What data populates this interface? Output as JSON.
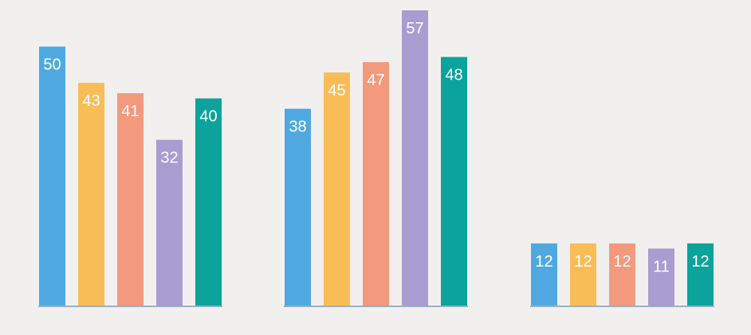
{
  "chart_data": {
    "type": "bar",
    "title": "",
    "xlabel": "",
    "ylabel": "",
    "ylim": [
      0,
      57
    ],
    "grid": false,
    "legend": "none",
    "colors": [
      "#4fa9e0",
      "#f9bd57",
      "#f3997d",
      "#a89cd0",
      "#0ba39b"
    ],
    "groups": [
      {
        "values": [
          50,
          43,
          41,
          32,
          40
        ]
      },
      {
        "values": [
          38,
          45,
          47,
          57,
          48
        ]
      },
      {
        "values": [
          12,
          12,
          12,
          11,
          12
        ]
      }
    ]
  }
}
